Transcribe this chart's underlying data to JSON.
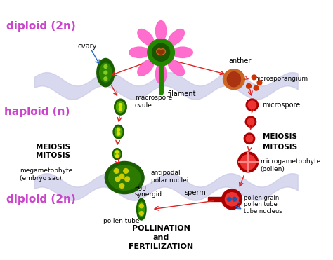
{
  "bg_color": "#ffffff",
  "fig_width": 4.74,
  "fig_height": 3.71,
  "dpi": 100,
  "diploid_color": "#cc44cc",
  "haploid_color": "#cc44cc",
  "wave_color": "#c8c8e8",
  "arrow_red": "#dd2222",
  "arrow_blue": "#2266cc",
  "green_dark": "#1a6600",
  "green_mid": "#339900",
  "red_dark": "#cc0000",
  "red_mid": "#dd4444",
  "pink_flower": "#ff66cc",
  "orange_anther": "#cc6622",
  "text_color": "#000000",
  "labels": {
    "diploid_top": "diploid (2n)",
    "haploid": "haploid (n)",
    "diploid_bot": "diploid (2n)",
    "ovary": "ovary",
    "anther": "anther",
    "microsporangium": "microsporangium",
    "microspore": "microspore",
    "filament": "filament",
    "macrospore_ovule": "macrospore\novule",
    "meiosis_left": "MEIOSIS",
    "mitosis_left": "MITOSIS",
    "megagametophyte": "megametophyte\n(embryo sac)",
    "antipodal": "antipodal",
    "polar_nuclei": "polar nuclei",
    "egg": "egg",
    "synergid": "synergid",
    "pollen_tube_left": "pollen tube",
    "meiosis_right": "MEIOSIS",
    "mitosis_right": "MITOSIS",
    "microgametophyte": "microgametophyte\n(pollen)",
    "sperm": "sperm",
    "pollen_grain": "pollen grain",
    "pollen_tube_right": "pollen tube",
    "tube_nucleus": "tube nucleus",
    "pollination": "POLLINATION\nand\nFERTILIZATION"
  }
}
